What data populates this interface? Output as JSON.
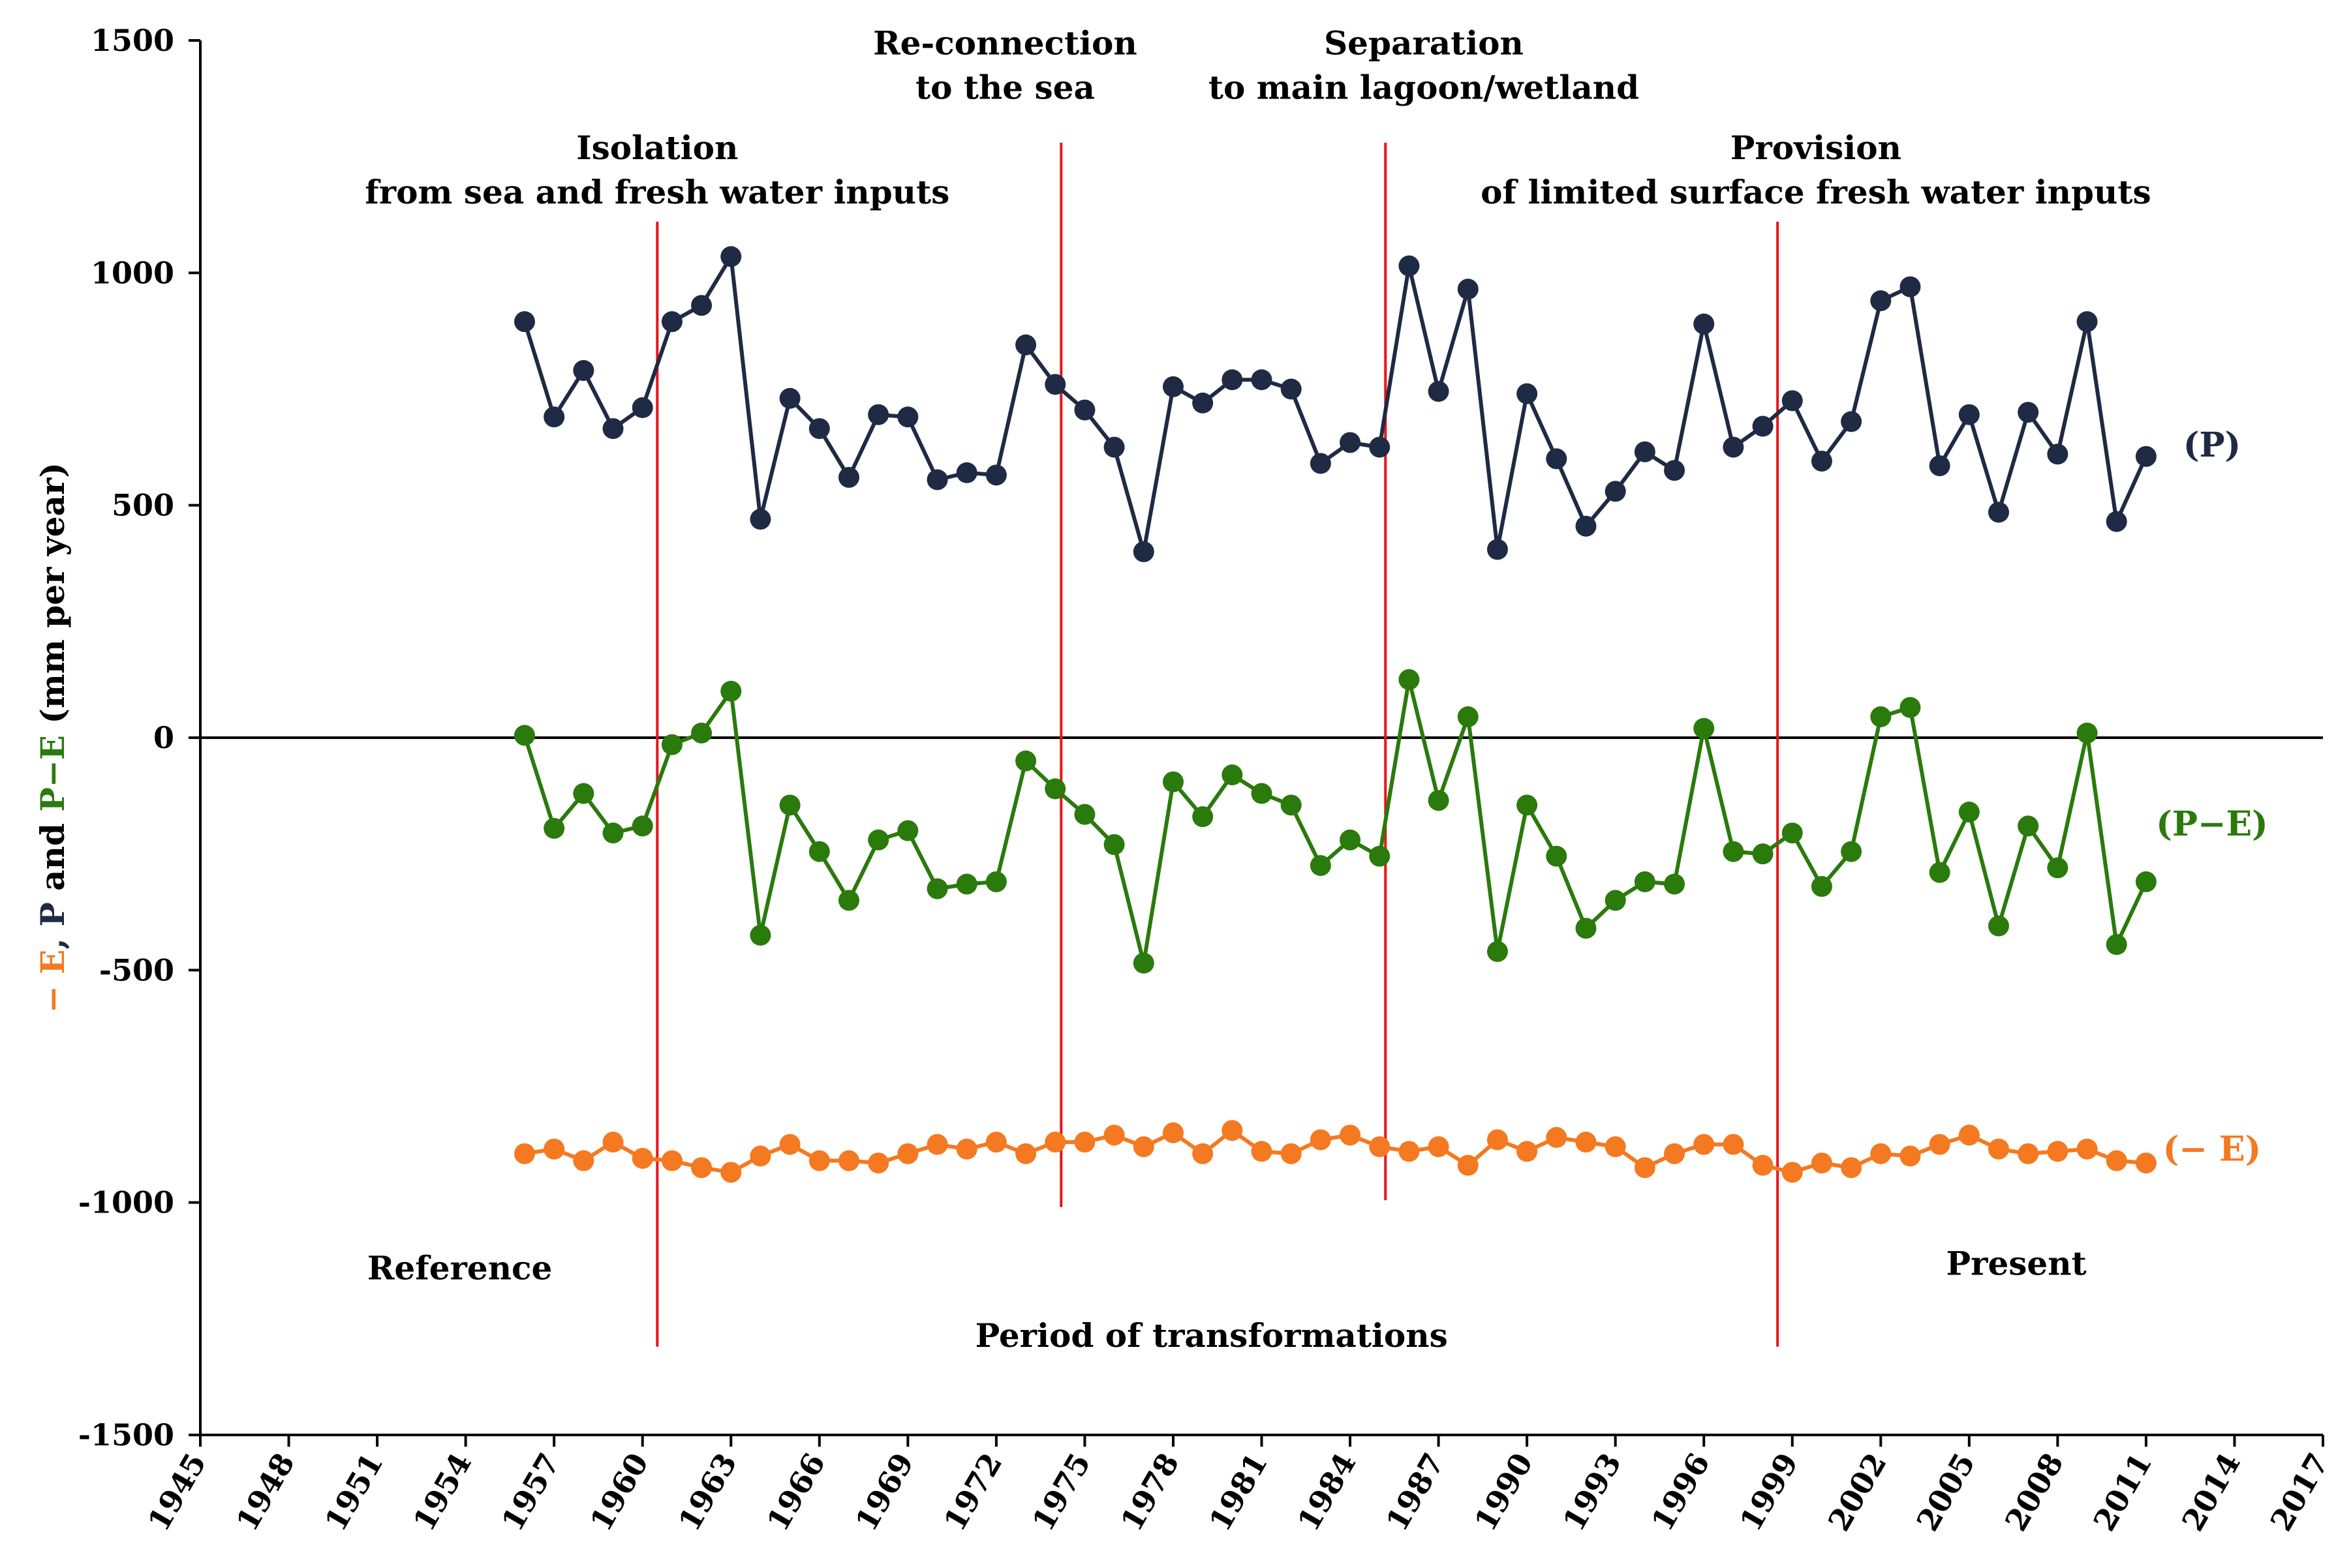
{
  "chart_data": {
    "type": "line",
    "title": "",
    "xlabel": "",
    "ylabel_parts": [
      {
        "text": "− E",
        "color": "#F47920"
      },
      {
        "text": ", ",
        "color": "#1F2A44"
      },
      {
        "text": "P",
        "color": "#1F2A44"
      },
      {
        "text": " and ",
        "color": "#000000"
      },
      {
        "text": "P−E",
        "color": "#2A7A0C"
      },
      {
        "text": " (mm per year)",
        "color": "#000000"
      }
    ],
    "xlim": [
      1945,
      2017
    ],
    "ylim": [
      -1500,
      1500
    ],
    "x_ticks": [
      1945,
      1948,
      1951,
      1954,
      1957,
      1960,
      1963,
      1966,
      1969,
      1972,
      1975,
      1978,
      1981,
      1984,
      1987,
      1990,
      1993,
      1996,
      1999,
      2002,
      2005,
      2008,
      2011,
      2014,
      2017
    ],
    "x_tick_labels": [
      "1945",
      "1948",
      "1951",
      "1954",
      "1957",
      "1960",
      "1963",
      "1966",
      "1969",
      "1972",
      "1975",
      "1978",
      "1981",
      "1984",
      "1987",
      "1990",
      "1993",
      "1996",
      "1999",
      "2002",
      "2005",
      "2008",
      "2011",
      "2014",
      "2017"
    ],
    "y_ticks": [
      -1500,
      -1000,
      -500,
      0,
      500,
      1000,
      1500
    ],
    "y_tick_labels": [
      "-1500",
      "-1000",
      "-500",
      "0",
      "500",
      "1000",
      "1500"
    ],
    "grid": false,
    "x": [
      1956,
      1957,
      1958,
      1959,
      1960,
      1961,
      1962,
      1963,
      1964,
      1965,
      1966,
      1967,
      1968,
      1969,
      1970,
      1971,
      1972,
      1973,
      1974,
      1975,
      1976,
      1977,
      1978,
      1979,
      1980,
      1981,
      1982,
      1983,
      1984,
      1985,
      1986,
      1987,
      1988,
      1989,
      1990,
      1991,
      1992,
      1993,
      1994,
      1995,
      1996,
      1997,
      1998,
      1999,
      2000,
      2001,
      2002,
      2003,
      2004,
      2005,
      2006,
      2007,
      2008,
      2009,
      2010,
      2011
    ],
    "series": [
      {
        "name": "(P)",
        "color": "#1F2A44",
        "values": [
          895,
          690,
          790,
          665,
          710,
          895,
          930,
          1035,
          470,
          730,
          665,
          560,
          695,
          690,
          555,
          570,
          565,
          845,
          760,
          705,
          625,
          400,
          755,
          720,
          770,
          770,
          750,
          590,
          635,
          625,
          1015,
          745,
          965,
          405,
          740,
          600,
          455,
          530,
          615,
          575,
          890,
          625,
          670,
          725,
          595,
          680,
          940,
          970,
          585,
          695,
          485,
          700,
          610,
          895,
          465,
          605
        ]
      },
      {
        "name": "(P−E)",
        "color": "#2A7A0C",
        "values": [
          5,
          -195,
          -120,
          -205,
          -190,
          -15,
          10,
          100,
          -425,
          -145,
          -245,
          -350,
          -220,
          -200,
          -325,
          -315,
          -310,
          -50,
          -110,
          -165,
          -230,
          -485,
          -95,
          -170,
          -80,
          -120,
          -145,
          -275,
          -220,
          -255,
          125,
          -135,
          45,
          -460,
          -145,
          -255,
          -410,
          -350,
          -310,
          -315,
          20,
          -245,
          -250,
          -205,
          -320,
          -245,
          45,
          65,
          -290,
          -160,
          -405,
          -190,
          -280,
          10,
          -445,
          -310
        ]
      },
      {
        "name": "(− E)",
        "color": "#F47920",
        "values": [
          -895,
          -885,
          -910,
          -870,
          -905,
          -910,
          -925,
          -935,
          -900,
          -875,
          -910,
          -910,
          -915,
          -895,
          -875,
          -885,
          -870,
          -895,
          -870,
          -870,
          -855,
          -880,
          -850,
          -895,
          -845,
          -890,
          -895,
          -865,
          -855,
          -880,
          -890,
          -880,
          -920,
          -865,
          -890,
          -860,
          -870,
          -880,
          -925,
          -895,
          -875,
          -875,
          -920,
          -935,
          -915,
          -925,
          -895,
          -900,
          -875,
          -855,
          -885,
          -895,
          -890,
          -885,
          -910,
          -915
        ]
      }
    ],
    "vertical_lines": [
      {
        "x": 1960.5,
        "y_from": 1110,
        "y_to": -1310,
        "color": "#E8141C"
      },
      {
        "x": 1974.2,
        "y_from": 1280,
        "y_to": -1010,
        "color": "#E8141C"
      },
      {
        "x": 1985.2,
        "y_from": 1280,
        "y_to": -995,
        "color": "#E8141C"
      },
      {
        "x": 1998.5,
        "y_from": 1110,
        "y_to": -1310,
        "color": "#E8141C"
      }
    ],
    "annotations": [
      {
        "lines": [
          "Isolation",
          "from sea and fresh water inputs"
        ],
        "x": 1960.5,
        "y": 1270
      },
      {
        "lines": [
          "Re-connection",
          "to the sea"
        ],
        "x": 1972.3,
        "y": 1495
      },
      {
        "lines": [
          "Separation",
          "to main lagoon/wetland"
        ],
        "x": 1986.5,
        "y": 1495
      },
      {
        "lines": [
          "Provision",
          "of limited surface fresh water inputs"
        ],
        "x": 1999.8,
        "y": 1270
      },
      {
        "lines": [
          "Reference"
        ],
        "x": 1953.8,
        "y": -1140
      },
      {
        "lines": [
          "Period of transformations"
        ],
        "x": 1979.3,
        "y": -1285
      },
      {
        "lines": [
          "Present"
        ],
        "x": 2006.6,
        "y": -1130
      }
    ],
    "series_labels": [
      {
        "text": "(P)",
        "y": 630,
        "color": "#1F2A44"
      },
      {
        "text": "(P−E)",
        "y": -185,
        "color": "#2A7A0C"
      },
      {
        "text": "(− E)",
        "y": -885,
        "color": "#F47920"
      }
    ]
  }
}
